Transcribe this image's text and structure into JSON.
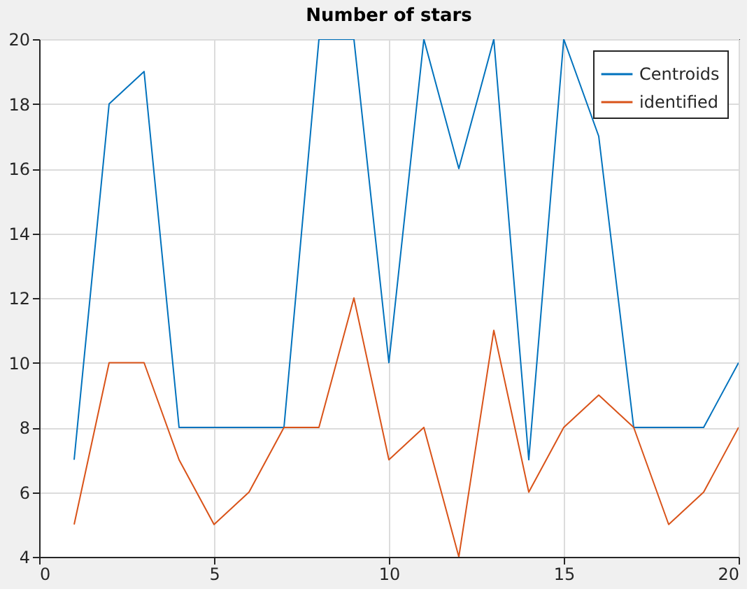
{
  "chart_data": {
    "type": "line",
    "title": "Number of stars",
    "x": [
      1,
      2,
      3,
      4,
      5,
      6,
      7,
      8,
      9,
      10,
      11,
      12,
      13,
      14,
      15,
      16,
      17,
      18,
      19,
      20
    ],
    "series": [
      {
        "name": "Centroids",
        "color": "#0072bd",
        "values": [
          7,
          18,
          19,
          8,
          8,
          8,
          8,
          20,
          20,
          10,
          20,
          16,
          20,
          7,
          20,
          17,
          8,
          8,
          8,
          10
        ]
      },
      {
        "name": "identified",
        "color": "#d95319",
        "values": [
          5,
          10,
          10,
          7,
          5,
          6,
          8,
          8,
          12,
          7,
          8,
          4,
          11,
          6,
          8,
          9,
          8,
          5,
          6,
          8
        ]
      }
    ],
    "xlim": [
      0,
      20
    ],
    "xticks": [
      0,
      5,
      10,
      15,
      20
    ],
    "ylim": [
      4,
      20
    ],
    "yticks": [
      4,
      6,
      8,
      10,
      12,
      14,
      16,
      18,
      20
    ],
    "grid": true,
    "legend": "top right",
    "marker": "none",
    "line_style": "solid"
  }
}
